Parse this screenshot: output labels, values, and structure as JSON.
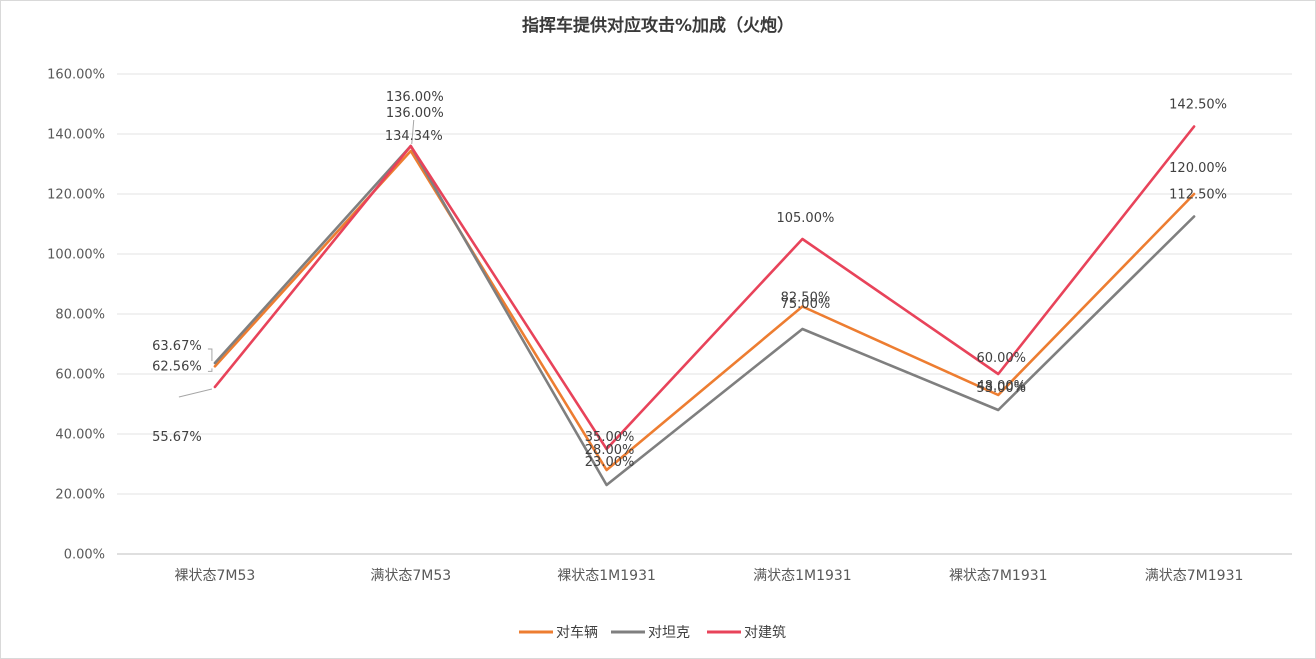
{
  "chart_data": {
    "type": "line",
    "title": "指挥车提供对应攻击%加成（火炮）",
    "xlabel": "",
    "ylabel": "",
    "categories": [
      "裸状态7M53",
      "满状态7M53",
      "裸状态1M1931",
      "满状态1M1931",
      "裸状态7M1931",
      "满状态7M1931"
    ],
    "ylim": [
      0,
      160
    ],
    "yticks": [
      "0.00%",
      "20.00%",
      "40.00%",
      "60.00%",
      "80.00%",
      "100.00%",
      "120.00%",
      "140.00%",
      "160.00%"
    ],
    "grid": true,
    "legend_position": "bottom",
    "series": [
      {
        "name": "对车辆",
        "color": "#ED7D31",
        "values": [
          62.56,
          134.34,
          28.0,
          82.5,
          53.0,
          120.0
        ],
        "labels": [
          "62.56%",
          "134.34%",
          "28.00%",
          "82.50%",
          "53.00%",
          "120.00%"
        ]
      },
      {
        "name": "对坦克",
        "color": "#7F7F7F",
        "values": [
          63.67,
          136.0,
          23.0,
          75.0,
          48.0,
          112.5
        ],
        "labels": [
          "63.67%",
          "136.00%",
          "23.00%",
          "75.00%",
          "48.00%",
          "112.50%"
        ]
      },
      {
        "name": "对建筑",
        "color": "#E8435A",
        "values": [
          55.67,
          136.0,
          35.0,
          105.0,
          60.0,
          142.5
        ],
        "labels": [
          "55.67%",
          "136.00%",
          "35.00%",
          "105.00%",
          "60.00%",
          "142.50%"
        ]
      }
    ]
  }
}
